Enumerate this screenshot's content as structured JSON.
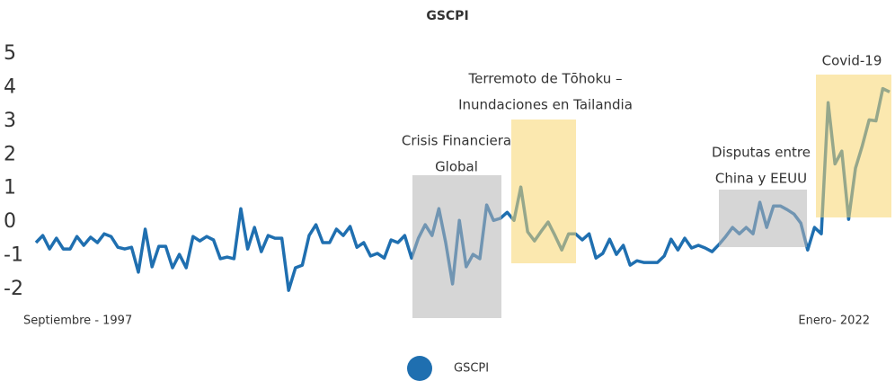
{
  "chart_data": {
    "type": "line",
    "title": "GSCPI",
    "categories": [
      "Septiembre - 1997",
      null,
      null,
      null,
      null,
      null,
      null,
      null,
      null,
      null,
      null,
      null,
      null,
      null,
      null,
      null,
      null,
      null,
      null,
      null,
      null,
      null,
      null,
      null,
      null,
      null,
      null,
      null,
      null,
      null,
      null,
      null,
      null,
      null,
      null,
      null,
      null,
      null,
      null,
      null,
      null,
      null,
      null,
      null,
      null,
      null,
      null,
      null,
      null,
      null,
      null,
      null,
      null,
      null,
      null,
      null,
      null,
      null,
      null,
      null,
      null,
      null,
      null,
      null,
      null,
      null,
      null,
      null,
      null,
      null,
      null,
      null,
      null,
      null,
      null,
      null,
      null,
      null,
      null,
      null,
      null,
      null,
      null,
      null,
      null,
      null,
      null,
      null,
      null,
      null,
      null,
      null,
      null,
      null,
      null,
      null,
      null,
      null,
      null,
      null,
      null,
      null,
      null,
      null,
      null,
      null,
      null,
      null,
      null,
      null,
      null,
      null,
      null,
      null,
      null,
      null,
      null,
      null,
      null,
      null,
      null,
      null,
      null,
      null,
      null,
      "Enero- 2022"
    ],
    "series": [
      {
        "name": "GSCPI",
        "color": "#1f6fb0",
        "values": [
          -0.61,
          -0.4,
          -0.8,
          -0.48,
          -0.8,
          -0.8,
          -0.43,
          -0.69,
          -0.45,
          -0.61,
          -0.35,
          -0.43,
          -0.75,
          -0.8,
          -0.75,
          -1.49,
          -0.21,
          -1.33,
          -0.72,
          -0.72,
          -1.36,
          -0.96,
          -1.36,
          -0.43,
          -0.56,
          -0.43,
          -0.53,
          -1.09,
          -1.04,
          -1.09,
          0.4,
          -0.8,
          -0.16,
          -0.88,
          -0.4,
          -0.48,
          -0.48,
          -2.03,
          -1.36,
          -1.28,
          -0.4,
          -0.08,
          -0.61,
          -0.61,
          -0.21,
          -0.4,
          -0.13,
          -0.75,
          -0.61,
          -1.01,
          -0.93,
          -1.07,
          -0.53,
          -0.61,
          -0.4,
          -1.07,
          -0.48,
          -0.08,
          -0.4,
          0.4,
          -0.61,
          -1.84,
          0.05,
          -1.33,
          -0.96,
          -1.09,
          0.51,
          0.05,
          0.11,
          0.29,
          0.05,
          1.04,
          -0.29,
          -0.56,
          -0.27,
          0.0,
          -0.4,
          -0.83,
          -0.35,
          -0.35,
          -0.53,
          -0.35,
          -1.07,
          -0.93,
          -0.51,
          -0.96,
          -0.69,
          -1.28,
          -1.15,
          -1.2,
          -1.2,
          -1.2,
          -1.01,
          -0.51,
          -0.83,
          -0.48,
          -0.77,
          -0.69,
          -0.77,
          -0.88,
          -0.67,
          -0.43,
          -0.16,
          -0.35,
          -0.16,
          -0.35,
          0.59,
          -0.16,
          0.48,
          0.48,
          0.37,
          0.24,
          -0.03,
          -0.83,
          -0.16,
          -0.35,
          3.55,
          1.73,
          2.11,
          0.08,
          1.6,
          2.27,
          3.04,
          3.01,
          3.97,
          3.87
        ]
      }
    ],
    "ylim": [
      -2,
      5
    ],
    "yticks": [
      -2,
      -1,
      0,
      1,
      2,
      3,
      4,
      5
    ],
    "grid": false,
    "legend": "bottom",
    "annotations": [
      {
        "lines": [
          "Crisis Financiera",
          "Global"
        ]
      },
      {
        "lines": [
          "Terremoto de Tōhoku –",
          "Inundaciones en Tailandia"
        ]
      },
      {
        "lines": [
          "Disputas entre",
          "China y  EEUU"
        ]
      },
      {
        "lines": [
          "Covid-19"
        ]
      }
    ]
  }
}
